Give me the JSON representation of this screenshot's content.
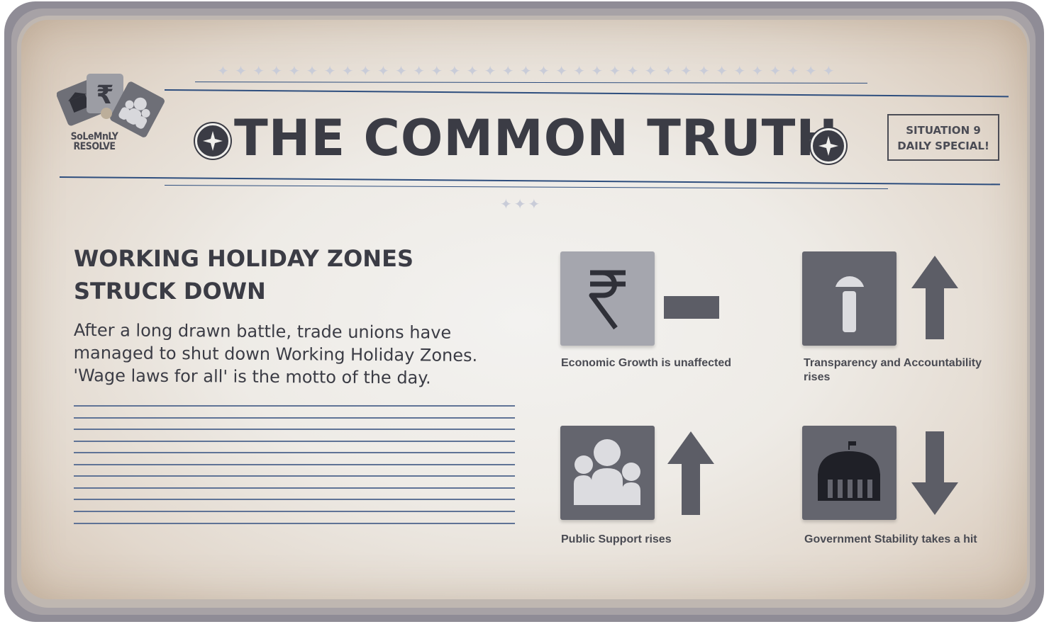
{
  "logo": {
    "line1": "SoLeMnLY",
    "line2": "RESOLVE"
  },
  "masthead": {
    "title": "THE COMMON TRUTH",
    "situation_line1": "SITUATION 9",
    "situation_line2": "DAILY SPECIAL!"
  },
  "article": {
    "headline_line1": "WORKING HOLIDAY ZONES",
    "headline_line2": "STRUCK DOWN",
    "body": "After a long drawn battle, trade unions have managed to shut down Working Holiday Zones. 'Wage laws for all' is the motto of the day."
  },
  "effects": [
    {
      "stat": "Economic Growth",
      "label": "Economic Growth is unaffected",
      "icon": "rupee-icon",
      "change": "unchanged"
    },
    {
      "stat": "Transparency and Accountability",
      "label": "Transparency and Accountability rises",
      "icon": "microphone-icon",
      "change": "up"
    },
    {
      "stat": "Public Support",
      "label": "Public Support rises",
      "icon": "people-icon",
      "change": "up"
    },
    {
      "stat": "Government Stability",
      "label": "Government Stability takes a hit",
      "icon": "government-building-icon",
      "change": "down"
    }
  ],
  "colors": {
    "ink": "#3b3c45",
    "rule": "#2e4e7e",
    "tile_light": "#a5a6ae",
    "tile_dark": "#64656e",
    "arrow": "#5c5d66"
  }
}
